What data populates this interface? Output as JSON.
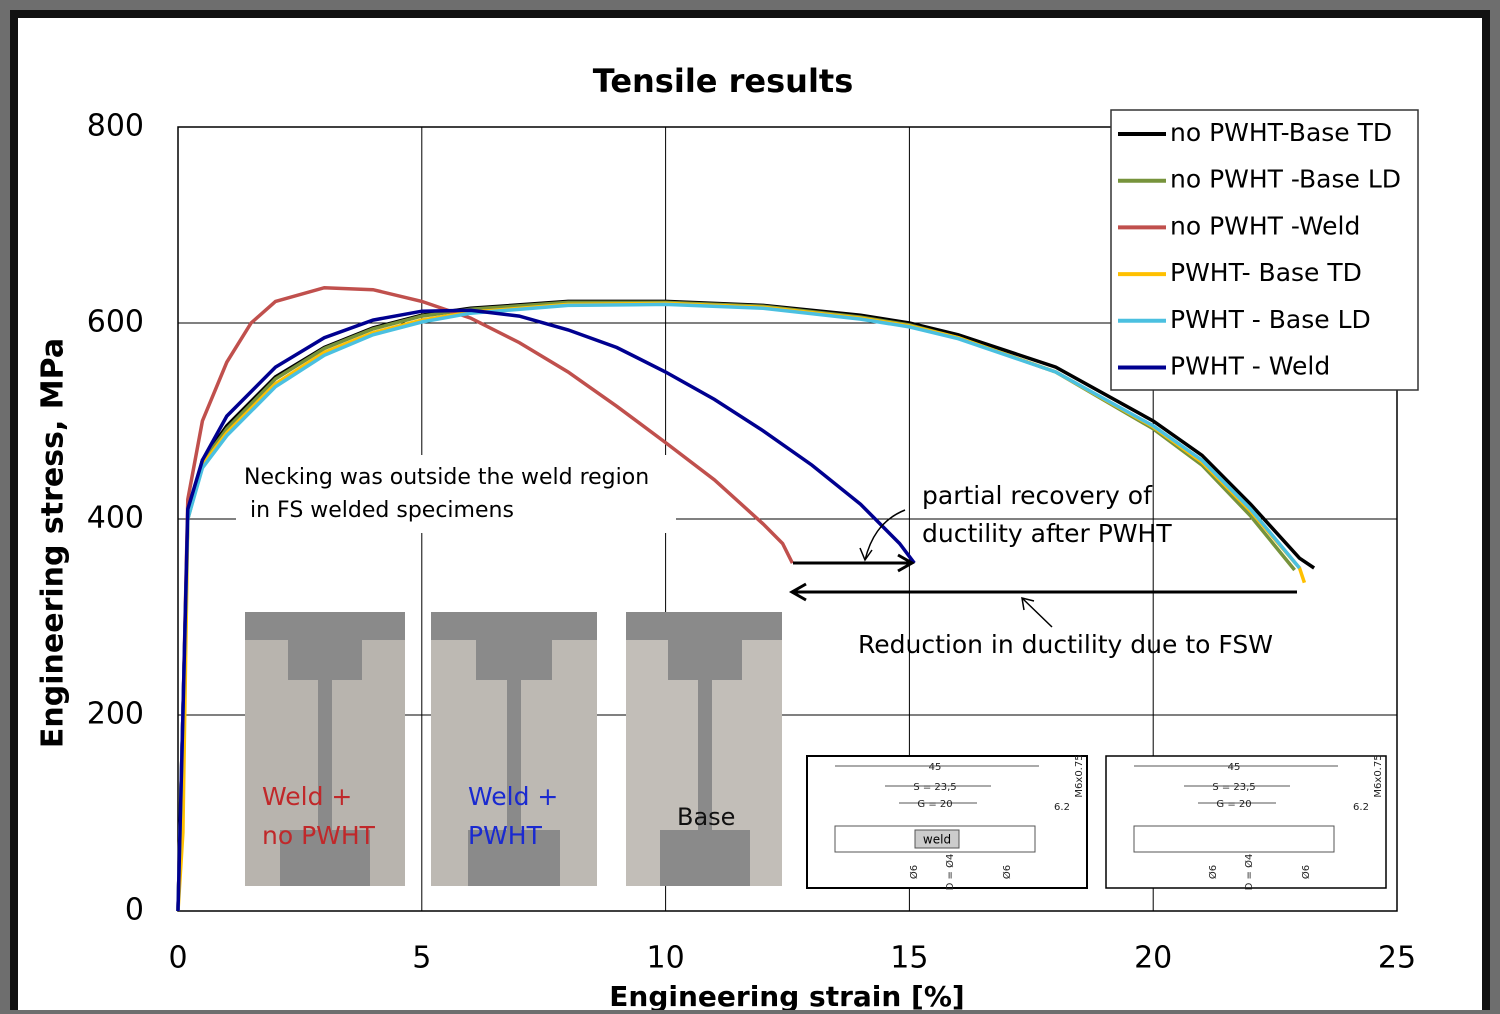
{
  "chart_data": {
    "type": "line",
    "title": "Tensile results",
    "x_label": "Engineering strain [%]",
    "y_label": "Engineering stress, MPa",
    "xlim": [
      0,
      25
    ],
    "xticks": [
      0,
      5,
      10,
      15,
      20,
      25
    ],
    "ylim": [
      0,
      800
    ],
    "yticks": [
      0,
      200,
      400,
      600,
      800
    ],
    "grid": true,
    "legend": "upper right",
    "series": [
      {
        "name": "no PWHT-Base TD",
        "color": "#000000",
        "x": [
          0,
          0.1,
          0.2,
          0.5,
          1,
          2,
          3,
          4,
          5,
          6,
          8,
          10,
          12,
          14,
          15,
          16,
          18,
          20,
          21,
          22,
          23,
          23.3
        ],
        "values": [
          0,
          200,
          400,
          460,
          495,
          545,
          575,
          595,
          608,
          615,
          622,
          622,
          618,
          608,
          600,
          588,
          555,
          500,
          465,
          415,
          360,
          350
        ]
      },
      {
        "name": "no PWHT -Base LD",
        "color": "#77933c",
        "x": [
          0,
          0.1,
          0.2,
          0.5,
          1,
          2,
          3,
          4,
          5,
          6,
          8,
          10,
          12,
          14,
          15,
          16,
          18,
          20,
          21,
          22,
          22.9
        ],
        "values": [
          0,
          200,
          400,
          458,
          492,
          543,
          574,
          594,
          607,
          614,
          621,
          621,
          617,
          606,
          598,
          585,
          550,
          492,
          455,
          403,
          348
        ]
      },
      {
        "name": "no PWHT -Weld",
        "color": "#c0504d",
        "x": [
          0,
          0.1,
          0.2,
          0.5,
          1,
          1.5,
          2,
          3,
          4,
          5,
          6,
          7,
          8,
          9,
          10,
          11,
          12,
          12.4,
          12.6
        ],
        "values": [
          0,
          200,
          420,
          500,
          560,
          600,
          622,
          636,
          634,
          622,
          605,
          580,
          550,
          515,
          478,
          440,
          395,
          375,
          355
        ]
      },
      {
        "name": "PWHT- Base TD",
        "color": "#ffc000",
        "x": [
          0,
          0.1,
          0.2,
          0.5,
          1,
          2,
          3,
          4,
          5,
          6,
          8,
          10,
          12,
          14,
          15,
          16,
          18,
          20,
          21,
          22,
          23,
          23.1
        ],
        "values": [
          0,
          80,
          400,
          455,
          488,
          538,
          570,
          590,
          603,
          611,
          619,
          620,
          616,
          605,
          597,
          585,
          550,
          494,
          458,
          408,
          350,
          335
        ]
      },
      {
        "name": "PWHT - Base LD",
        "color": "#4bc0e0",
        "x": [
          0,
          0.1,
          0.2,
          0.5,
          1,
          2,
          3,
          4,
          5,
          6,
          8,
          10,
          12,
          14,
          15,
          16,
          18,
          20,
          21,
          22,
          23
        ],
        "values": [
          0,
          200,
          400,
          452,
          485,
          535,
          567,
          588,
          601,
          610,
          618,
          619,
          615,
          604,
          596,
          584,
          550,
          495,
          460,
          410,
          350
        ]
      },
      {
        "name": "PWHT - Weld",
        "color": "#000090",
        "x": [
          0,
          0.1,
          0.2,
          0.5,
          1,
          2,
          3,
          4,
          5,
          6,
          7,
          8,
          9,
          10,
          11,
          12,
          13,
          14,
          14.8,
          15.1
        ],
        "values": [
          0,
          200,
          410,
          460,
          505,
          555,
          585,
          603,
          612,
          613,
          607,
          593,
          575,
          550,
          522,
          490,
          455,
          415,
          375,
          355
        ]
      }
    ],
    "annotations": [
      "Necking was outside the weld region",
      "in FS welded specimens",
      "partial recovery of",
      "ductility after PWHT",
      "Reduction in ductility due to FSW"
    ],
    "photo_labels": [
      [
        "Weld +",
        "no PWHT"
      ],
      [
        "Weld +",
        "PWHT"
      ],
      [
        "Base"
      ]
    ],
    "drawing_labels": [
      "45",
      "S = 23,5",
      "G = 20",
      "6.2",
      "M6x0.75",
      "weld",
      "Ø6",
      "D = Ø4",
      "Ø6"
    ]
  }
}
